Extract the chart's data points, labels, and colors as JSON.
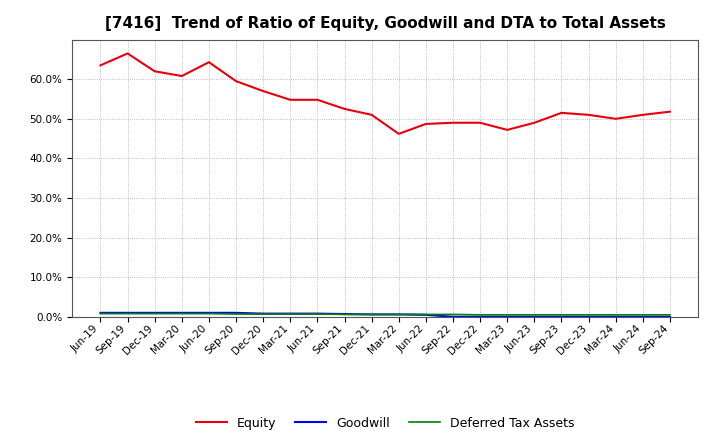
{
  "title": "[7416]  Trend of Ratio of Equity, Goodwill and DTA to Total Assets",
  "labels": [
    "Jun-19",
    "Sep-19",
    "Dec-19",
    "Mar-20",
    "Jun-20",
    "Sep-20",
    "Dec-20",
    "Mar-21",
    "Jun-21",
    "Sep-21",
    "Dec-21",
    "Mar-22",
    "Jun-22",
    "Sep-22",
    "Dec-22",
    "Mar-23",
    "Jun-23",
    "Sep-23",
    "Dec-23",
    "Mar-24",
    "Jun-24",
    "Sep-24"
  ],
  "equity": [
    0.635,
    0.665,
    0.62,
    0.608,
    0.643,
    0.595,
    0.57,
    0.548,
    0.548,
    0.525,
    0.51,
    0.462,
    0.487,
    0.49,
    0.49,
    0.472,
    0.49,
    0.515,
    0.51,
    0.5,
    0.51,
    0.518
  ],
  "goodwill": [
    0.01,
    0.01,
    0.01,
    0.01,
    0.01,
    0.01,
    0.008,
    0.008,
    0.008,
    0.007,
    0.006,
    0.006,
    0.005,
    0.0,
    0.0,
    0.0,
    0.0,
    0.0,
    0.0,
    0.0,
    0.0,
    0.0
  ],
  "dta": [
    0.008,
    0.008,
    0.008,
    0.008,
    0.008,
    0.007,
    0.007,
    0.007,
    0.007,
    0.006,
    0.006,
    0.006,
    0.006,
    0.006,
    0.005,
    0.005,
    0.005,
    0.005,
    0.005,
    0.005,
    0.005,
    0.005
  ],
  "equity_color": "#e8000d",
  "goodwill_color": "#0000ff",
  "dta_color": "#008000",
  "bg_color": "#ffffff",
  "plot_bg_color": "#ffffff",
  "grid_color": "#aaaaaa",
  "ylim": [
    0.0,
    0.7
  ],
  "yticks": [
    0.0,
    0.1,
    0.2,
    0.3,
    0.4,
    0.5,
    0.6
  ],
  "legend_labels": [
    "Equity",
    "Goodwill",
    "Deferred Tax Assets"
  ],
  "title_fontsize": 11,
  "tick_fontsize": 7.5,
  "legend_fontsize": 9
}
